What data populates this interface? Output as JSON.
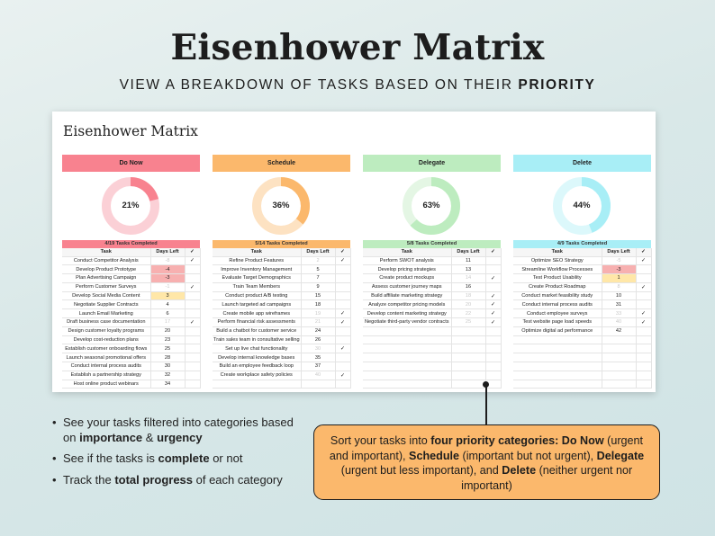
{
  "hero": {
    "title": "Eisenhower Matrix",
    "subtitle_prefix": "VIEW A BREAKDOWN OF TASKS BASED ON THEIR ",
    "subtitle_bold": "PRIORITY"
  },
  "sheet": {
    "title": "Eisenhower Matrix",
    "col_task": "Task",
    "col_days": "Days Left",
    "col_check": "✓"
  },
  "panels": [
    {
      "name": "Do Now",
      "header_color": "#f8828f",
      "ring_color": "#f8828f",
      "ring_track": "#fbd0d6",
      "percent_label": "21%",
      "percent": 21,
      "completed_label": "4/19 Tasks Completed",
      "rows": [
        {
          "task": "Conduct Competitor Analysis",
          "days": "-8",
          "done": "✓",
          "style": "muted"
        },
        {
          "task": "Develop Product Prototype",
          "days": "-4",
          "done": "",
          "style": "red"
        },
        {
          "task": "Plan Advertising Campaign",
          "days": "-3",
          "done": "",
          "style": "red"
        },
        {
          "task": "Perform Customer Surveys",
          "days": "-1",
          "done": "✓",
          "style": "muted"
        },
        {
          "task": "Develop Social Media Content",
          "days": "3",
          "done": "",
          "style": "yellow"
        },
        {
          "task": "Negotiate Supplier Contracts",
          "days": "4",
          "done": "",
          "style": ""
        },
        {
          "task": "Launch Email Marketing",
          "days": "6",
          "done": "",
          "style": ""
        },
        {
          "task": "Draft business case documentation",
          "days": "17",
          "done": "✓",
          "style": "muted"
        },
        {
          "task": "Design customer loyalty programs",
          "days": "20",
          "done": "",
          "style": ""
        },
        {
          "task": "Develop cost-reduction plans",
          "days": "23",
          "done": "",
          "style": ""
        },
        {
          "task": "Establish customer onboarding flows",
          "days": "25",
          "done": "",
          "style": ""
        },
        {
          "task": "Launch seasonal promotional offers",
          "days": "28",
          "done": "",
          "style": ""
        },
        {
          "task": "Conduct internal process audits",
          "days": "30",
          "done": "",
          "style": ""
        },
        {
          "task": "Establish a partnership strategy",
          "days": "32",
          "done": "",
          "style": ""
        },
        {
          "task": "Host online product webinars",
          "days": "34",
          "done": "",
          "style": ""
        }
      ]
    },
    {
      "name": "Schedule",
      "header_color": "#fbb86c",
      "ring_color": "#fbb86c",
      "ring_track": "#fde2c2",
      "percent_label": "36%",
      "percent": 36,
      "completed_label": "5/14 Tasks Completed",
      "rows": [
        {
          "task": "Refine Product Features",
          "days": "2",
          "done": "✓",
          "style": "muted"
        },
        {
          "task": "Improve Inventory Management",
          "days": "5",
          "done": "",
          "style": ""
        },
        {
          "task": "Evaluate Target Demographics",
          "days": "7",
          "done": "",
          "style": ""
        },
        {
          "task": "Train Team Members",
          "days": "9",
          "done": "",
          "style": ""
        },
        {
          "task": "Conduct product A/B testing",
          "days": "15",
          "done": "",
          "style": ""
        },
        {
          "task": "Launch targeted ad campaigns",
          "days": "18",
          "done": "",
          "style": ""
        },
        {
          "task": "Create mobile app wireframes",
          "days": "19",
          "done": "✓",
          "style": "muted"
        },
        {
          "task": "Perform financial risk assessments",
          "days": "21",
          "done": "✓",
          "style": "muted"
        },
        {
          "task": "Build a chatbot for customer service",
          "days": "24",
          "done": "",
          "style": ""
        },
        {
          "task": "Train sales team in consultative selling",
          "days": "26",
          "done": "",
          "style": ""
        },
        {
          "task": "Set up live chat functionality",
          "days": "30",
          "done": "✓",
          "style": "muted"
        },
        {
          "task": "Develop internal knowledge bases",
          "days": "35",
          "done": "",
          "style": ""
        },
        {
          "task": "Build an employee feedback loop",
          "days": "37",
          "done": "",
          "style": ""
        },
        {
          "task": "Create workplace safety policies",
          "days": "40",
          "done": "✓",
          "style": "muted"
        },
        {
          "task": "",
          "days": "",
          "done": "",
          "style": ""
        }
      ]
    },
    {
      "name": "Delegate",
      "header_color": "#bdecbf",
      "ring_color": "#bdecbf",
      "ring_track": "#e4f6e4",
      "percent_label": "63%",
      "percent": 63,
      "completed_label": "5/8 Tasks Completed",
      "rows": [
        {
          "task": "Perform SWOT analysis",
          "days": "11",
          "done": "",
          "style": ""
        },
        {
          "task": "Develop pricing strategies",
          "days": "13",
          "done": "",
          "style": ""
        },
        {
          "task": "Create product mockups",
          "days": "14",
          "done": "✓",
          "style": "muted"
        },
        {
          "task": "Assess customer journey maps",
          "days": "16",
          "done": "",
          "style": ""
        },
        {
          "task": "Build affiliate marketing strategy",
          "days": "18",
          "done": "✓",
          "style": "muted"
        },
        {
          "task": "Analyze competitor pricing models",
          "days": "20",
          "done": "✓",
          "style": "muted"
        },
        {
          "task": "Develop content marketing strategy",
          "days": "22",
          "done": "✓",
          "style": "muted"
        },
        {
          "task": "Negotiate third-party vendor contracts",
          "days": "25",
          "done": "✓",
          "style": "muted"
        },
        {
          "task": "",
          "days": "",
          "done": "",
          "style": ""
        },
        {
          "task": "",
          "days": "",
          "done": "",
          "style": ""
        },
        {
          "task": "",
          "days": "",
          "done": "",
          "style": ""
        },
        {
          "task": "",
          "days": "",
          "done": "",
          "style": ""
        },
        {
          "task": "",
          "days": "",
          "done": "",
          "style": ""
        },
        {
          "task": "",
          "days": "",
          "done": "",
          "style": ""
        },
        {
          "task": "",
          "days": "",
          "done": "",
          "style": ""
        }
      ]
    },
    {
      "name": "Delete",
      "header_color": "#a8eef6",
      "ring_color": "#a8eef6",
      "ring_track": "#dcf8fb",
      "percent_label": "44%",
      "percent": 44,
      "completed_label": "4/9 Tasks Completed",
      "rows": [
        {
          "task": "Optimize SEO Strategy",
          "days": "-5",
          "done": "✓",
          "style": "muted"
        },
        {
          "task": "Streamline Workflow Processes",
          "days": "-3",
          "done": "",
          "style": "red"
        },
        {
          "task": "Test Product Usability",
          "days": "1",
          "done": "",
          "style": "yellow"
        },
        {
          "task": "Create Product Roadmap",
          "days": "8",
          "done": "✓",
          "style": "muted"
        },
        {
          "task": "Conduct market feasibility study",
          "days": "10",
          "done": "",
          "style": ""
        },
        {
          "task": "Conduct internal process audits",
          "days": "31",
          "done": "",
          "style": ""
        },
        {
          "task": "Conduct employee surveys",
          "days": "33",
          "done": "✓",
          "style": "muted"
        },
        {
          "task": "Test website page load speeds",
          "days": "40",
          "done": "✓",
          "style": "muted"
        },
        {
          "task": "Optimize digital ad performance",
          "days": "42",
          "done": "",
          "style": ""
        },
        {
          "task": "",
          "days": "",
          "done": "",
          "style": ""
        },
        {
          "task": "",
          "days": "",
          "done": "",
          "style": ""
        },
        {
          "task": "",
          "days": "",
          "done": "",
          "style": ""
        },
        {
          "task": "",
          "days": "",
          "done": "",
          "style": ""
        },
        {
          "task": "",
          "days": "",
          "done": "",
          "style": ""
        },
        {
          "task": "",
          "days": "",
          "done": "",
          "style": ""
        }
      ]
    }
  ],
  "bullets": [
    {
      "parts": [
        {
          "t": "See your tasks filtered into categories based on ",
          "b": false
        },
        {
          "t": "importance",
          "b": true
        },
        {
          "t": " & ",
          "b": false
        },
        {
          "t": "urgency",
          "b": true
        }
      ]
    },
    {
      "parts": [
        {
          "t": "See if the tasks is ",
          "b": false
        },
        {
          "t": "complete",
          "b": true
        },
        {
          "t": " or not",
          "b": false
        }
      ]
    },
    {
      "parts": [
        {
          "t": "Track the ",
          "b": false
        },
        {
          "t": "total progress",
          "b": true
        },
        {
          "t": " of each category",
          "b": false
        }
      ]
    }
  ],
  "callout": {
    "parts": [
      {
        "t": "Sort your tasks into ",
        "b": false
      },
      {
        "t": "four priority categories: Do Now",
        "b": true
      },
      {
        "t": " (urgent and important), ",
        "b": false
      },
      {
        "t": "Schedule",
        "b": true
      },
      {
        "t": " (important but not urgent), ",
        "b": false
      },
      {
        "t": "Delegate",
        "b": true
      },
      {
        "t": " (urgent but less important), and ",
        "b": false
      },
      {
        "t": "Delete",
        "b": true
      },
      {
        "t": " (neither urgent nor important)",
        "b": false
      }
    ]
  }
}
